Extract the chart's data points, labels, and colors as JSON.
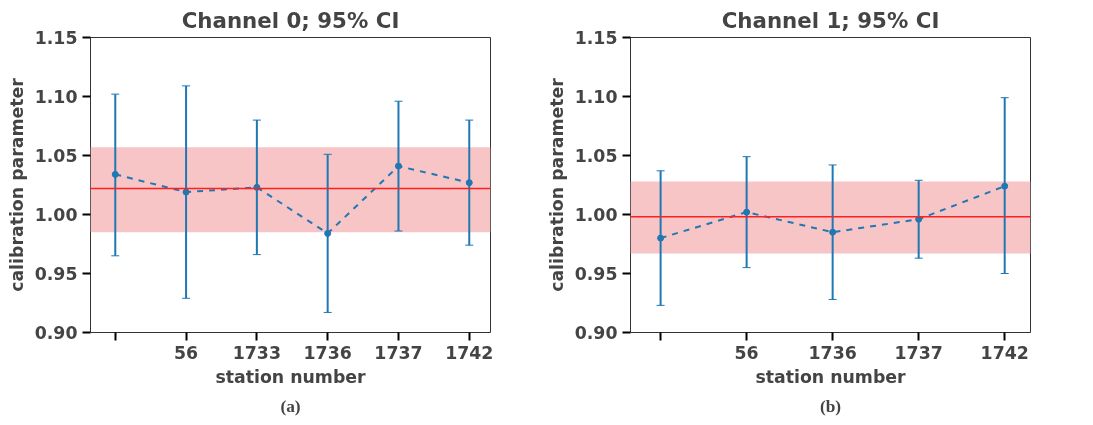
{
  "chart_data": [
    {
      "type": "line",
      "title": "Channel 0; 95% CI",
      "xlabel": "station number",
      "ylabel": "calibration parameter",
      "categories": [
        null,
        "56",
        "1733",
        "1736",
        "1737",
        "1742"
      ],
      "series": [
        {
          "color": "#1f77b4",
          "values": [
            1.034,
            1.019,
            1.023,
            0.984,
            1.041,
            1.027
          ],
          "errors": [
            [
              0.965,
              1.102
            ],
            [
              0.929,
              1.109
            ],
            [
              0.966,
              1.08
            ],
            [
              0.917,
              1.051
            ],
            [
              0.986,
              1.096
            ],
            [
              0.974,
              1.08
            ]
          ]
        }
      ],
      "ylim": [
        0.9,
        1.15
      ],
      "yticks": [
        {
          "value": 0.9,
          "label": "0.90"
        },
        {
          "value": 0.95,
          "label": "0.95"
        },
        {
          "value": 1.0,
          "label": "1.00"
        },
        {
          "value": 1.05,
          "label": "1.05"
        },
        {
          "value": 1.1,
          "label": "1.10"
        },
        {
          "value": 1.15,
          "label": "1.15"
        }
      ],
      "ref_lines": [
        {
          "axis": "y",
          "value": 1.022,
          "color": "#ff2020"
        }
      ],
      "bands": [
        {
          "axis": "y",
          "from": 0.985,
          "to": 1.057,
          "color": "#f7c5c5"
        }
      ],
      "marker": "circle",
      "line_style": "dashed",
      "grid": false,
      "annotations": [
        "(a)"
      ]
    },
    {
      "type": "line",
      "title": "Channel 1; 95% CI",
      "xlabel": "station number",
      "ylabel": "calibration parameter",
      "categories": [
        null,
        "56",
        "1736",
        "1737",
        "1742"
      ],
      "series": [
        {
          "color": "#1f77b4",
          "values": [
            0.98,
            1.002,
            0.985,
            0.996,
            1.024
          ],
          "errors": [
            [
              0.923,
              1.037
            ],
            [
              0.955,
              1.049
            ],
            [
              0.928,
              1.042
            ],
            [
              0.963,
              1.029
            ],
            [
              0.95,
              1.099
            ]
          ]
        }
      ],
      "ylim": [
        0.9,
        1.15
      ],
      "yticks": [
        {
          "value": 0.9,
          "label": "0.90"
        },
        {
          "value": 0.95,
          "label": "0.95"
        },
        {
          "value": 1.0,
          "label": "1.00"
        },
        {
          "value": 1.05,
          "label": "1.05"
        },
        {
          "value": 1.1,
          "label": "1.10"
        },
        {
          "value": 1.15,
          "label": "1.15"
        }
      ],
      "ref_lines": [
        {
          "axis": "y",
          "value": 0.998,
          "color": "#ff2020"
        }
      ],
      "bands": [
        {
          "axis": "y",
          "from": 0.967,
          "to": 1.028,
          "color": "#f7c5c5"
        }
      ],
      "marker": "circle",
      "line_style": "dashed",
      "grid": false,
      "annotations": [
        "(b)"
      ]
    }
  ]
}
